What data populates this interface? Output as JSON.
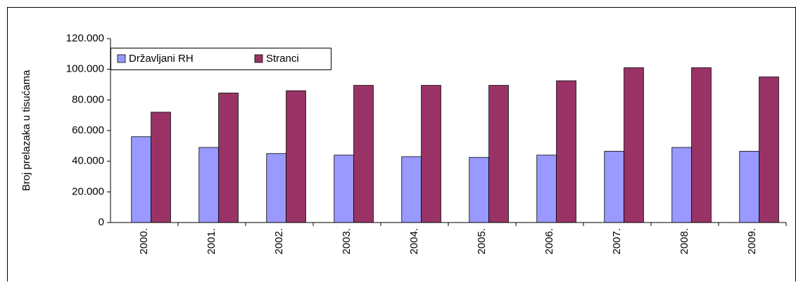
{
  "chart_data": {
    "type": "bar",
    "y_label": "Broj prelazaka u tisućama",
    "categories": [
      "2000.",
      "2001.",
      "2002.",
      "2003.",
      "2004.",
      "2005.",
      "2006.",
      "2007.",
      "2008.",
      "2009."
    ],
    "series": [
      {
        "name": "Državljani RH",
        "color": "#9999ff",
        "values": [
          56000,
          49000,
          45000,
          44000,
          43000,
          42500,
          44000,
          46500,
          49000,
          46500
        ]
      },
      {
        "name": "Stranci",
        "color": "#993366",
        "values": [
          72000,
          84500,
          86000,
          89500,
          89500,
          89500,
          92500,
          101000,
          101000,
          95000
        ]
      }
    ],
    "ylim": [
      0,
      120000
    ],
    "yticks": [
      0,
      {
        "value": 20000,
        "label": "20.000"
      },
      {
        "value": 40000,
        "label": "40.000"
      },
      {
        "value": 60000,
        "label": "60.000"
      },
      {
        "value": 80000,
        "label": "80.000"
      },
      {
        "value": 100000,
        "label": "100.000"
      },
      {
        "value": 120000,
        "label": "120.000"
      }
    ]
  }
}
